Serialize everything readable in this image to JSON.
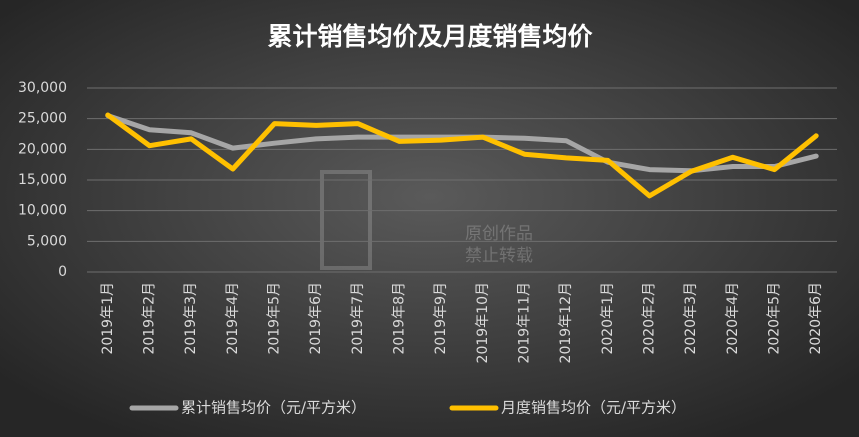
{
  "chart_data": {
    "type": "line",
    "title": "累计销售均价及月度销售均价",
    "categories": [
      "2019年1月",
      "2019年2月",
      "2019年3月",
      "2019年4月",
      "2019年5月",
      "2019年6月",
      "2019年7月",
      "2019年8月",
      "2019年9月",
      "2019年10月",
      "2019年11月",
      "2019年12月",
      "2020年1月",
      "2020年2月",
      "2020年3月",
      "2020年4月",
      "2020年5月",
      "2020年6月"
    ],
    "series": [
      {
        "name": "累计销售均价（元/平方米）",
        "color": "#a6a6a6",
        "values": [
          25500,
          23200,
          22700,
          20200,
          21000,
          21700,
          22000,
          22000,
          22000,
          22000,
          21800,
          21400,
          17900,
          16700,
          16500,
          17200,
          17200,
          18900
        ]
      },
      {
        "name": "月度销售均价（元/平方米）",
        "color": "#ffc000",
        "values": [
          25600,
          20600,
          21700,
          16800,
          24200,
          23900,
          24200,
          21300,
          21500,
          22000,
          19200,
          18600,
          18200,
          12400,
          16400,
          18700,
          16700,
          22200
        ]
      }
    ],
    "ylim": [
      0,
      30000
    ],
    "yticks": [
      0,
      {
        "value": 5000,
        "label": "5,000"
      },
      {
        "value": 10000,
        "label": "10,000"
      },
      {
        "value": 15000,
        "label": "15,000"
      },
      {
        "value": 20000,
        "label": "20,000"
      },
      {
        "value": 25000,
        "label": "25,000"
      },
      {
        "value": 30000,
        "label": "30,000"
      }
    ],
    "grid": true,
    "legend": "bottom",
    "watermark": [
      "原创作品",
      "禁止转载"
    ]
  }
}
